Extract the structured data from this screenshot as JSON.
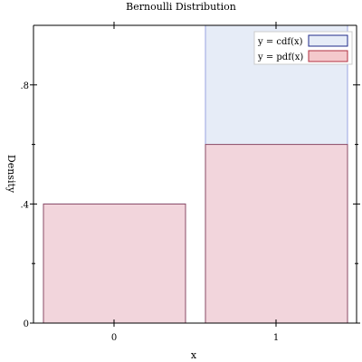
{
  "chart_data": {
    "type": "bar",
    "title": "Bernoulli Distribution",
    "xlabel": "x",
    "ylabel": "Density",
    "categories": [
      "0",
      "1"
    ],
    "ylim": [
      0,
      1
    ],
    "y_ticks": [
      {
        "value": 0,
        "label": "0"
      },
      {
        "value": 0.4,
        "label": ".4"
      },
      {
        "value": 0.8,
        "label": ".8"
      }
    ],
    "y_minor_ticks": [
      0.2,
      0.6
    ],
    "series": [
      {
        "name": "y = cdf(x)",
        "values": [
          0.4,
          1.0
        ],
        "fill": "#e6ecf7",
        "stroke": "#9aa3e0",
        "legend_fill": "#e6ecf7",
        "legend_stroke": "#1f2a8a"
      },
      {
        "name": "y = pdf(x)",
        "values": [
          0.4,
          0.6
        ],
        "fill": "#f2d5dc",
        "stroke": "#8a4a66",
        "legend_fill": "#f4c9cc",
        "legend_stroke": "#b03040"
      }
    ],
    "legend_position": "top-right",
    "grid": false
  }
}
